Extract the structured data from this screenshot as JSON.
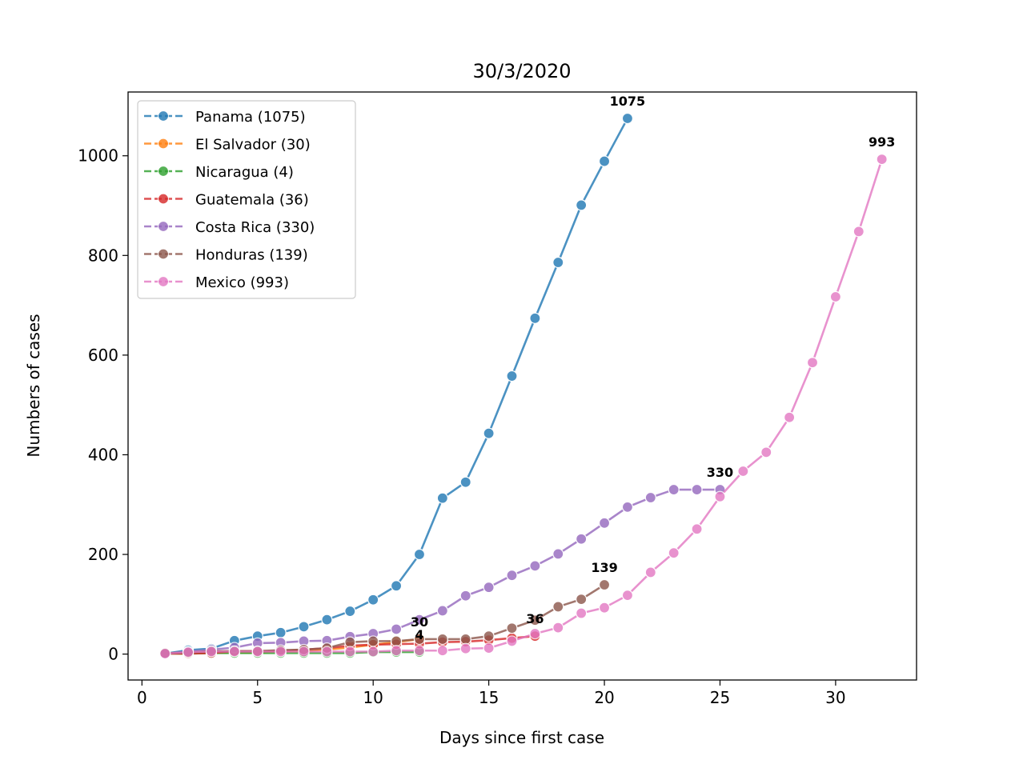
{
  "chart_data": {
    "type": "line",
    "title": "30/3/2020",
    "xlabel": "Days since first case",
    "ylabel": "Numbers of cases",
    "xlim": [
      -0.6,
      33.5
    ],
    "ylim": [
      -52,
      1128
    ],
    "xticks": [
      0,
      5,
      10,
      15,
      20,
      25,
      30
    ],
    "yticks": [
      0,
      200,
      400,
      600,
      800,
      1000
    ],
    "grid": false,
    "legend_position": "upper left",
    "series": [
      {
        "name": "Panama",
        "legend_label": "Panama (1075)",
        "color": "#1f77b4",
        "end_label": "1075",
        "x": [
          1,
          2,
          3,
          4,
          5,
          6,
          7,
          8,
          9,
          10,
          11,
          12,
          13,
          14,
          15,
          16,
          17,
          18,
          19,
          20,
          21
        ],
        "y": [
          1,
          8,
          11,
          27,
          36,
          43,
          55,
          69,
          86,
          109,
          137,
          200,
          313,
          345,
          443,
          558,
          674,
          786,
          901,
          989,
          1075
        ]
      },
      {
        "name": "El Salvador",
        "legend_label": "El Salvador (30)",
        "color": "#ff7f0e",
        "end_label": "30",
        "x": [
          1,
          2,
          3,
          4,
          5,
          6,
          7,
          8,
          9,
          10,
          11,
          12
        ],
        "y": [
          1,
          1,
          3,
          3,
          3,
          5,
          5,
          9,
          13,
          19,
          24,
          30
        ]
      },
      {
        "name": "Nicaragua",
        "legend_label": "Nicaragua (4)",
        "color": "#2ca02c",
        "end_label": "4",
        "x": [
          1,
          2,
          3,
          4,
          5,
          6,
          7,
          8,
          9,
          10,
          11,
          12
        ],
        "y": [
          1,
          1,
          2,
          2,
          2,
          2,
          2,
          2,
          2,
          4,
          4,
          4
        ]
      },
      {
        "name": "Guatemala",
        "legend_label": "Guatemala (36)",
        "color": "#d62728",
        "end_label": "36",
        "x": [
          1,
          2,
          3,
          4,
          5,
          6,
          7,
          8,
          9,
          10,
          11,
          12,
          13,
          14,
          15,
          16,
          17
        ],
        "y": [
          1,
          1,
          2,
          6,
          6,
          6,
          9,
          12,
          17,
          19,
          20,
          21,
          24,
          25,
          28,
          32,
          36
        ]
      },
      {
        "name": "Costa Rica",
        "legend_label": "Costa Rica (330)",
        "color": "#9467bd",
        "end_label": "330",
        "x": [
          1,
          2,
          3,
          4,
          5,
          6,
          7,
          8,
          9,
          10,
          11,
          12,
          13,
          14,
          15,
          16,
          17,
          18,
          19,
          20,
          21,
          22,
          23,
          24,
          25
        ],
        "y": [
          1,
          5,
          9,
          13,
          22,
          23,
          26,
          27,
          35,
          41,
          50,
          69,
          87,
          117,
          134,
          158,
          177,
          201,
          231,
          263,
          295,
          314,
          330,
          330,
          330
        ]
      },
      {
        "name": "Honduras",
        "legend_label": "Honduras (139)",
        "color": "#8c564b",
        "end_label": "139",
        "x": [
          1,
          2,
          3,
          4,
          5,
          6,
          7,
          8,
          9,
          10,
          11,
          12,
          13,
          14,
          15,
          16,
          17,
          18,
          19,
          20
        ],
        "y": [
          2,
          3,
          6,
          6,
          6,
          8,
          9,
          12,
          24,
          26,
          26,
          30,
          30,
          30,
          36,
          52,
          68,
          95,
          110,
          139
        ]
      },
      {
        "name": "Mexico",
        "legend_label": "Mexico (993)",
        "color": "#e377c2",
        "end_label": "993",
        "x": [
          1,
          2,
          3,
          4,
          5,
          6,
          7,
          8,
          9,
          10,
          11,
          12,
          13,
          14,
          15,
          16,
          17,
          18,
          19,
          20,
          21,
          22,
          23,
          24,
          25,
          26,
          27,
          28,
          29,
          30,
          31,
          32
        ],
        "y": [
          1,
          4,
          5,
          5,
          5,
          5,
          5,
          5,
          5,
          5,
          7,
          7,
          7,
          11,
          12,
          26,
          41,
          53,
          82,
          93,
          118,
          164,
          203,
          251,
          316,
          367,
          405,
          475,
          585,
          717,
          848,
          993
        ]
      }
    ]
  }
}
